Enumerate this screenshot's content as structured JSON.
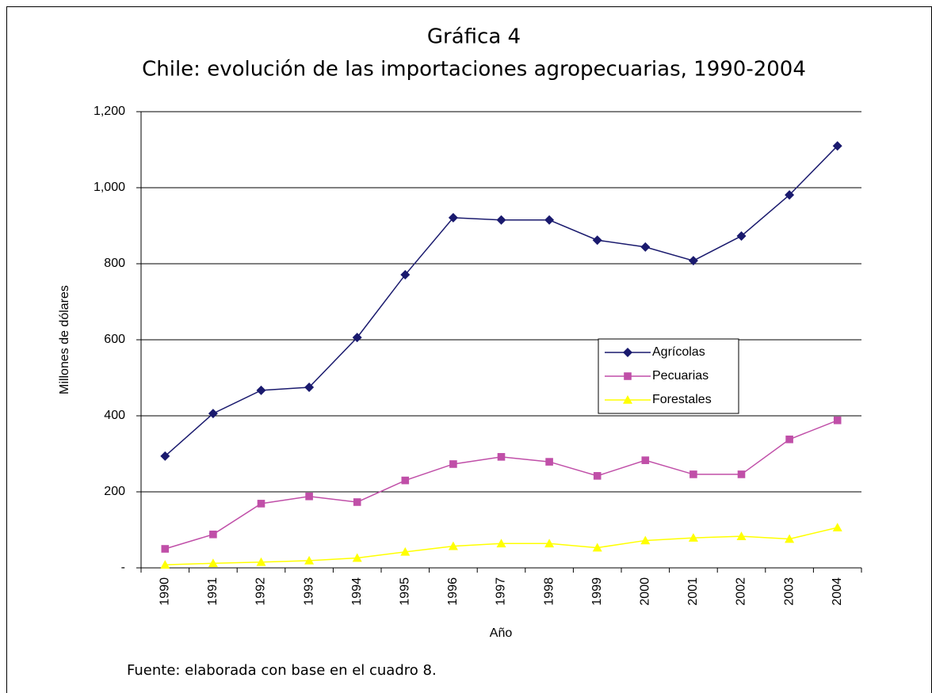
{
  "chart_data": {
    "type": "line",
    "title": "Gráfica 4",
    "subtitle": "Chile: evolución de las importaciones agropecuarias, 1990-2004",
    "x_label": "Año",
    "y_label": "Millones de dólares",
    "source": "Fuente: elaborada con base en el cuadro 8.",
    "categories": [
      "1990",
      "1991",
      "1992",
      "1993",
      "1994",
      "1995",
      "1996",
      "1997",
      "1998",
      "1999",
      "2000",
      "2001",
      "2002",
      "2003",
      "2004"
    ],
    "series": [
      {
        "name": "Agrícolas",
        "color": "#1a1a6e",
        "marker": "diamond",
        "values": [
          294,
          406,
          467,
          475,
          606,
          771,
          921,
          915,
          915,
          862,
          844,
          808,
          873,
          981,
          1110
        ]
      },
      {
        "name": "Pecuarias",
        "color": "#c04fa8",
        "marker": "square",
        "values": [
          50,
          88,
          169,
          188,
          173,
          230,
          273,
          292,
          279,
          242,
          283,
          246,
          246,
          338,
          388
        ]
      },
      {
        "name": "Forestales",
        "color": "#ffff00",
        "marker": "triangle",
        "values": [
          8,
          12,
          15,
          19,
          26,
          42,
          57,
          64,
          64,
          53,
          72,
          79,
          83,
          76,
          106
        ]
      }
    ],
    "ylim": [
      0,
      1200
    ],
    "yticks": [
      {
        "value": 0,
        "label": "-"
      },
      200,
      400,
      600,
      800,
      {
        "value": 1000,
        "label": "1,000"
      },
      {
        "value": 1200,
        "label": "1,200"
      }
    ],
    "grid": true,
    "legend": "right"
  }
}
